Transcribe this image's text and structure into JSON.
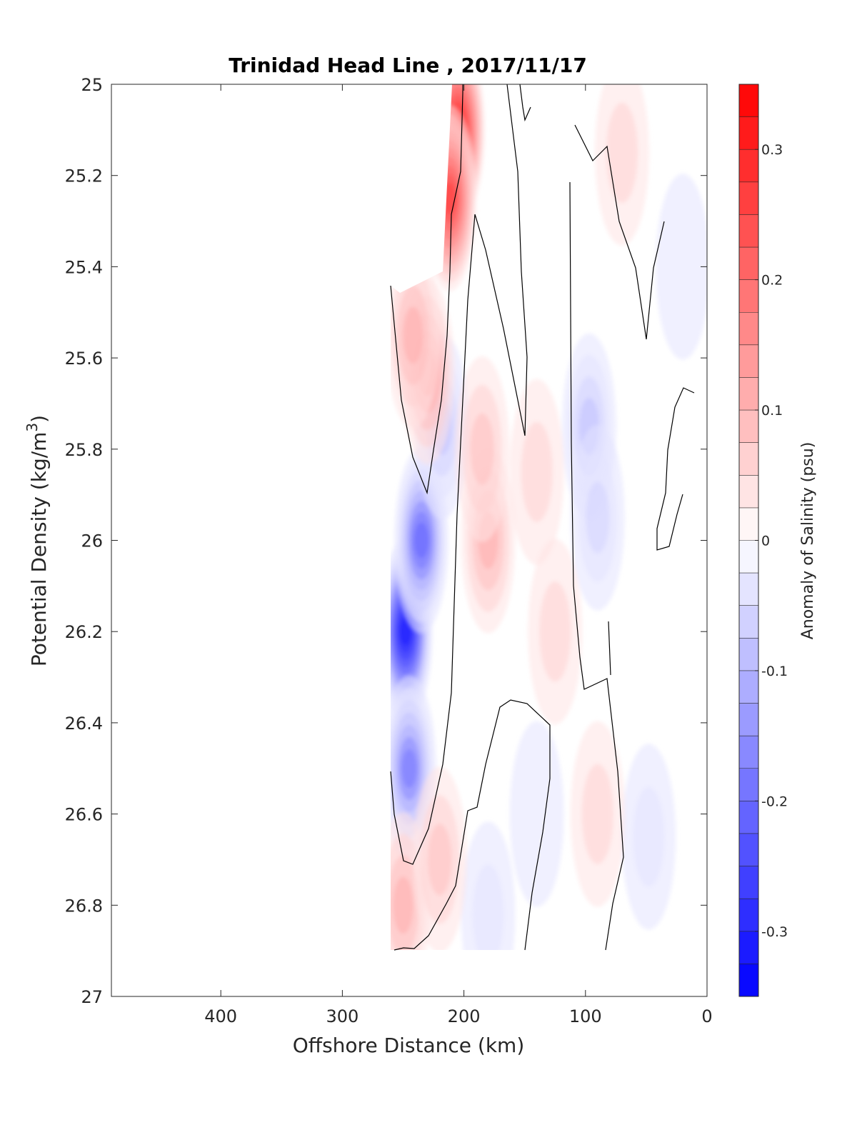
{
  "chart_data": {
    "type": "heatmap",
    "title": "Trinidad Head Line , 2017/11/17",
    "xlabel": "Offshore Distance (km)",
    "ylabel": "Potential Density (kg/m",
    "ylabel_sup": "3",
    "ylabel_close": ")",
    "xlim": [
      490,
      0
    ],
    "ylim": [
      25,
      27
    ],
    "x_ticks": [
      400,
      300,
      200,
      100,
      0
    ],
    "y_ticks": [
      25,
      25.2,
      25.4,
      25.6,
      25.8,
      26,
      26.2,
      26.4,
      26.6,
      26.8,
      27
    ],
    "x_tick_labels": [
      "400",
      "300",
      "200",
      "100",
      "0"
    ],
    "y_tick_labels": [
      "25",
      "25.2",
      "25.4",
      "25.6",
      "25.8",
      "26",
      "26.2",
      "26.4",
      "26.6",
      "26.8",
      "27"
    ],
    "colorbar": {
      "label": "Anomaly of Salinity (psu)",
      "range": [
        -0.35,
        0.35
      ],
      "ticks": [
        0.3,
        0.2,
        0.1,
        0,
        -0.1,
        -0.2,
        -0.3
      ],
      "tick_labels": [
        "0.3",
        "0.2",
        "0.1",
        "0",
        "-0.1",
        "-0.2",
        "-0.3"
      ],
      "levels": 28,
      "max_color": "#ff0000",
      "min_color": "#0000ff",
      "mid_color": "#ffffff"
    },
    "anomaly_cores": [
      {
        "x": 248,
        "y": 26.2,
        "value": -0.3
      },
      {
        "x": 235,
        "y": 26.0,
        "value": -0.2
      },
      {
        "x": 245,
        "y": 26.5,
        "value": -0.18
      },
      {
        "x": 218,
        "y": 25.75,
        "value": -0.1
      },
      {
        "x": 97,
        "y": 25.75,
        "value": -0.11
      },
      {
        "x": 90,
        "y": 25.95,
        "value": -0.08
      },
      {
        "x": 48,
        "y": 26.65,
        "value": -0.06
      },
      {
        "x": 180,
        "y": 26.82,
        "value": -0.04
      },
      {
        "x": 140,
        "y": 26.6,
        "value": -0.03
      },
      {
        "x": 20,
        "y": 25.4,
        "value": -0.03
      },
      {
        "x": 205,
        "y": 25.1,
        "value": 0.3
      },
      {
        "x": 212,
        "y": 25.25,
        "value": 0.25
      },
      {
        "x": 230,
        "y": 25.63,
        "value": 0.12
      },
      {
        "x": 242,
        "y": 25.55,
        "value": 0.1
      },
      {
        "x": 180,
        "y": 26.0,
        "value": 0.1
      },
      {
        "x": 185,
        "y": 25.8,
        "value": 0.08
      },
      {
        "x": 140,
        "y": 25.85,
        "value": 0.05
      },
      {
        "x": 125,
        "y": 26.2,
        "value": 0.04
      },
      {
        "x": 250,
        "y": 26.8,
        "value": 0.1
      },
      {
        "x": 220,
        "y": 26.7,
        "value": 0.08
      },
      {
        "x": 90,
        "y": 26.6,
        "value": 0.04
      },
      {
        "x": 70,
        "y": 25.15,
        "value": 0.04
      }
    ]
  }
}
